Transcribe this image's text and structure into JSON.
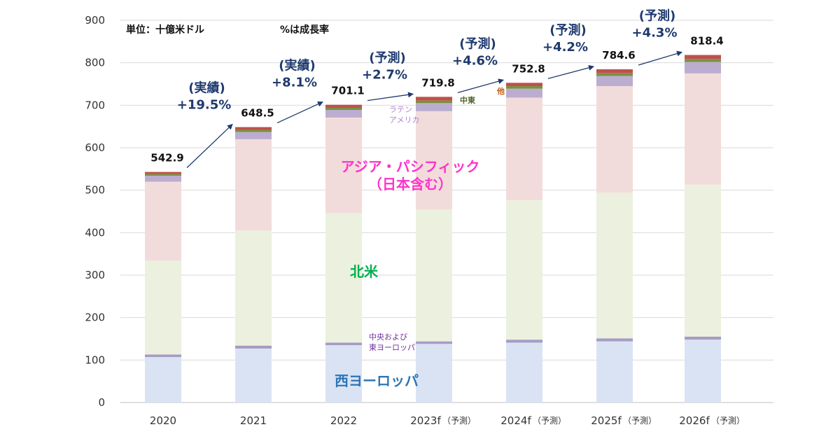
{
  "chart_data": {
    "type": "bar",
    "stacked": true,
    "categories": [
      "2020",
      "2021",
      "2022",
      "2023f",
      "2024f",
      "2025f",
      "2026f"
    ],
    "category_notes": [
      "",
      "",
      "",
      "（予測）",
      "（予測）",
      "（予測）",
      "（予測）"
    ],
    "ylim": [
      0,
      900
    ],
    "yticks": [
      0,
      100,
      200,
      300,
      400,
      500,
      600,
      700,
      800,
      900
    ],
    "unit_note": "単位：十億米ドル",
    "rate_note": "%は成長率",
    "totals": [
      "542.9",
      "648.5",
      "701.1",
      "719.8",
      "752.8",
      "784.6",
      "818.4"
    ],
    "total_values": [
      542.9,
      648.5,
      701.1,
      719.8,
      752.8,
      784.6,
      818.4
    ],
    "growth": [
      {
        "status": "(実績)",
        "rate": "+19.5%"
      },
      {
        "status": "(実績)",
        "rate": "+8.1%"
      },
      {
        "status": "(予測)",
        "rate": "+2.7%"
      },
      {
        "status": "(予測)",
        "rate": "+4.6%"
      },
      {
        "status": "(予測)",
        "rate": "+4.2%"
      },
      {
        "status": "(予測)",
        "rate": "+4.3%"
      }
    ],
    "series": [
      {
        "name": "西ヨーロッパ",
        "color": "#dae3f3",
        "values": [
          107,
          127,
          135,
          138,
          141,
          144,
          148
        ]
      },
      {
        "name": "中央および東ヨーロッパ",
        "color": "#a59cc4",
        "values": [
          6,
          7,
          6,
          6,
          7,
          7,
          7
        ]
      },
      {
        "name": "北米",
        "color": "#ebf1de",
        "values": [
          221,
          271,
          305,
          311,
          328,
          343,
          358
        ]
      },
      {
        "name": "アジア・パシフィック（日本含む）",
        "color": "#f2dcdb",
        "values": [
          186,
          215,
          225,
          231,
          242,
          251,
          262
        ]
      },
      {
        "name": "ラテンアメリカ",
        "color": "#bbadd0",
        "values": [
          14,
          17,
          18,
          19,
          21,
          24,
          27
        ]
      },
      {
        "name": "中東",
        "color": "#77933c",
        "values": [
          4,
          5,
          5,
          6,
          6,
          7,
          7
        ]
      },
      {
        "name": "他",
        "color": "#c0504d",
        "values": [
          4.9,
          6.5,
          7.1,
          8.8,
          7.8,
          8.6,
          9.4
        ]
      }
    ],
    "labels": {
      "western_europe": "西ヨーロッパ",
      "ce_europe_1": "中央および",
      "ce_europe_2": "東ヨーロッパ",
      "north_america": "北米",
      "asia_pacific_1": "アジア・パシフィック",
      "asia_pacific_2": "（日本含む）",
      "latam_1": "ラテン",
      "latam_2": "アメリカ",
      "middle_east": "中東",
      "other": "他"
    },
    "label_colors": {
      "western_europe": "#2e75b6",
      "ce_europe": "#7030a0",
      "north_america": "#00b050",
      "asia_pacific": "#ff33cc",
      "latam": "#b084cc",
      "middle_east": "#4f6228",
      "other": "#c55a11"
    },
    "grid": true,
    "legend": "none"
  }
}
